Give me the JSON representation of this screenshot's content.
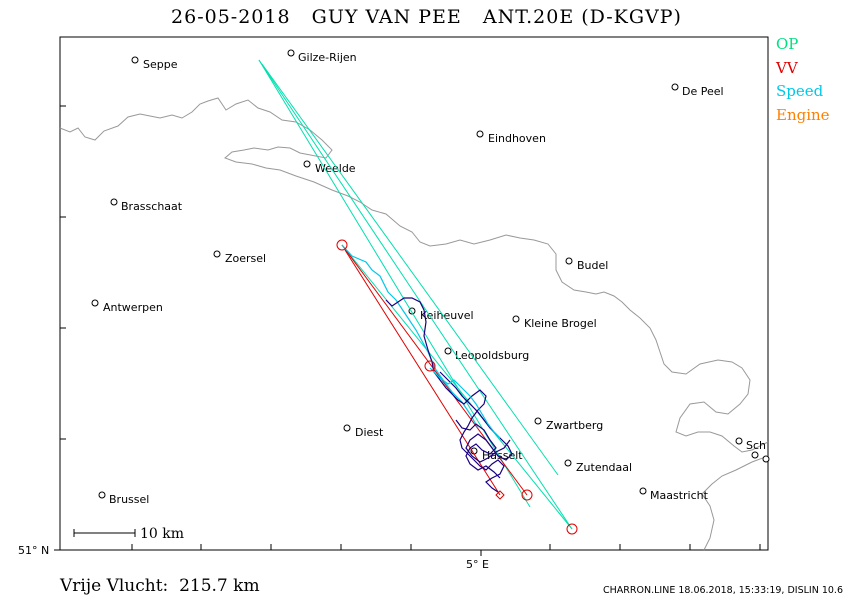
{
  "title": "26-05-2018   GUY VAN PEE   ANT.20E (D-KGVP)",
  "legend": [
    {
      "label": "OP",
      "color": "#00e080"
    },
    {
      "label": "VV",
      "color": "#e00000"
    },
    {
      "label": "Speed",
      "color": "#00c8e8"
    },
    {
      "label": "Engine",
      "color": "#ff8000"
    }
  ],
  "cities": [
    {
      "name": "Seppe"
    },
    {
      "name": "Gilze-Rijen"
    },
    {
      "name": "De Peel"
    },
    {
      "name": "Eindhoven"
    },
    {
      "name": "Weelde"
    },
    {
      "name": "Brasschaat"
    },
    {
      "name": "Zoersel"
    },
    {
      "name": "Budel"
    },
    {
      "name": "Antwerpen"
    },
    {
      "name": "Keiheuvel"
    },
    {
      "name": "Kleine Brogel"
    },
    {
      "name": "Leopoldsburg"
    },
    {
      "name": "Zwartberg"
    },
    {
      "name": "Diest"
    },
    {
      "name": "Hasselt"
    },
    {
      "name": "Zutendaal"
    },
    {
      "name": "Maastricht"
    },
    {
      "name": "Brussel"
    },
    {
      "name": "Sch"
    }
  ],
  "scale_label": "10  km",
  "lat_label": "51° N",
  "lon_label": "5° E",
  "flight_length": "Vrije Vlucht:  215.7 km",
  "footer": "CHARRON.LINE 18.06.2018, 15:33:19, DISLIN 10.6",
  "colors": {
    "border": "#999999",
    "track": "#1a0080",
    "track_alt": "#00c8e8",
    "straight": "#00e0b0",
    "turnpoint": "#e00000"
  }
}
